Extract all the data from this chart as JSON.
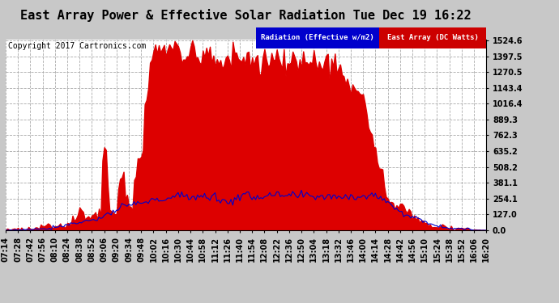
{
  "title": "East Array Power & Effective Solar Radiation Tue Dec 19 16:22",
  "copyright": "Copyright 2017 Cartronics.com",
  "legend_radiation": "Radiation (Effective w/m2)",
  "legend_east": "East Array (DC Watts)",
  "legend_radiation_bg": "#0000cc",
  "legend_east_bg": "#cc0000",
  "background_color": "#c8c8c8",
  "plot_bg": "#ffffff",
  "grid_color": "#aaaaaa",
  "yticks": [
    0.0,
    127.0,
    254.1,
    381.1,
    508.2,
    635.2,
    762.3,
    889.3,
    1016.4,
    1143.4,
    1270.5,
    1397.5,
    1524.6
  ],
  "ymax": 1524.6,
  "fill_color_east": "#dd0000",
  "line_color_radiation": "#0000cc",
  "title_fontsize": 11,
  "tick_fontsize": 7,
  "copyright_fontsize": 7
}
